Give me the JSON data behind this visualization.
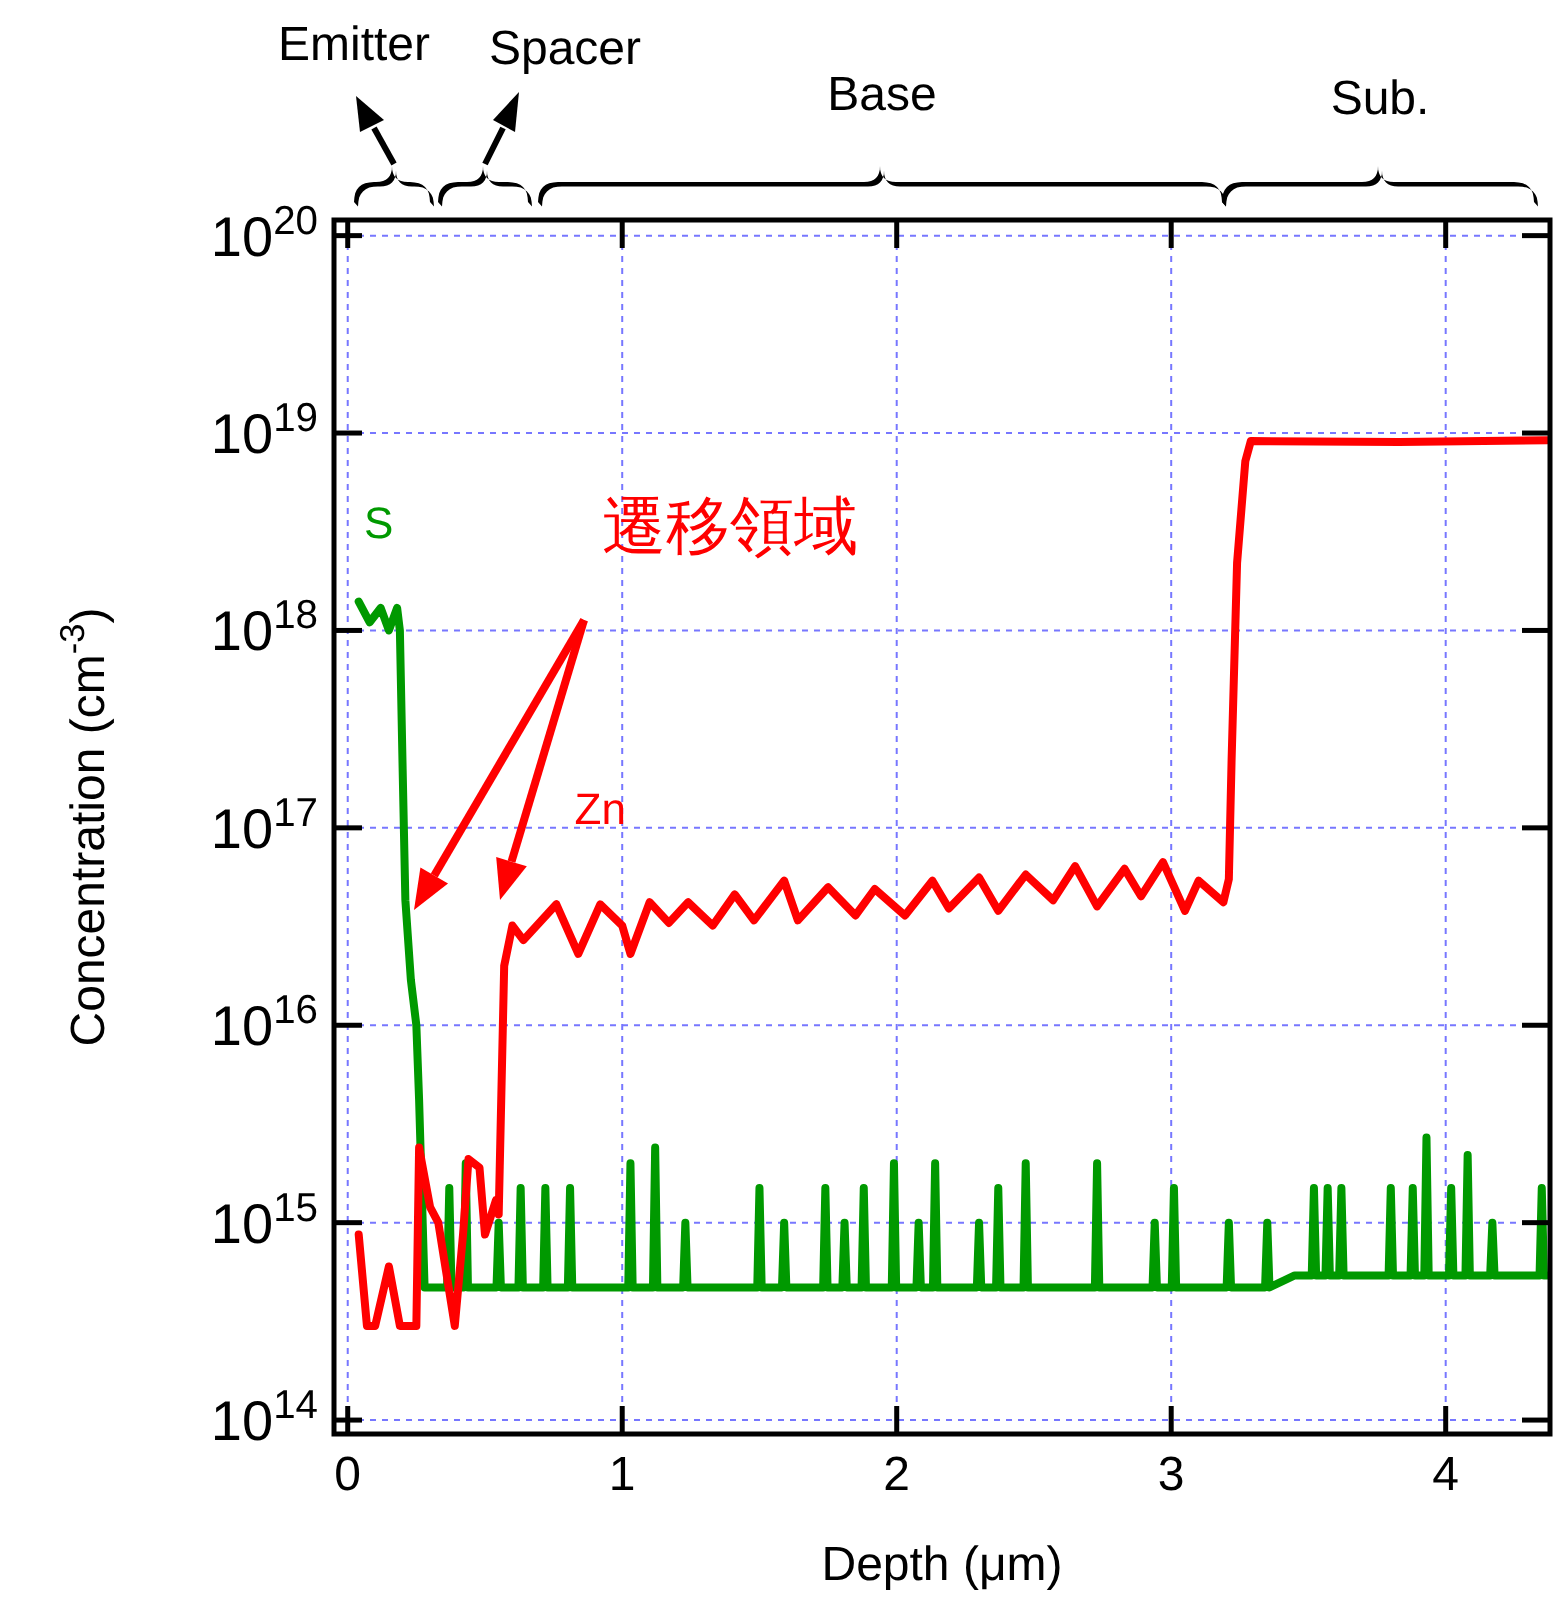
{
  "chart_data": {
    "type": "line",
    "xlabel": "Depth (μm)",
    "ylabel": "Concentration (cm$^{-3}$)",
    "log": "y",
    "grid": true,
    "line_style": "solid",
    "xlim": [
      -0.05,
      4.38
    ],
    "xticks": [
      0,
      1,
      2,
      3,
      4
    ],
    "ylim": [
      85000000000000.0,
      1.2e+20
    ],
    "yticks": [
      {
        "value": 100000000000000.0,
        "label": "10$^{14}$"
      },
      {
        "value": 1000000000000000.0,
        "label": "10$^{15}$"
      },
      {
        "value": 1e+16,
        "label": "10$^{16}$"
      },
      {
        "value": 1e+17,
        "label": "10$^{17}$"
      },
      {
        "value": 1e+18,
        "label": "10$^{18}$"
      },
      {
        "value": 1e+19,
        "label": "10$^{19}$"
      },
      {
        "value": 1e+20,
        "label": "10$^{20}$"
      }
    ],
    "annotations": [
      "Emitter",
      "Spacer",
      "Base",
      "Sub.",
      "遷移領域"
    ],
    "series": [
      {
        "name": "S",
        "color": "#009900",
        "x": [
          0.04,
          0.08,
          0.12,
          0.15,
          0.18,
          0.19,
          0.2,
          0.21,
          0.23,
          0.25,
          0.26,
          0.28,
          0.362,
          0.37,
          0.378,
          0.422,
          0.43,
          0.438,
          0.542,
          0.55,
          0.558,
          0.622,
          0.63,
          0.638,
          0.712,
          0.72,
          0.728,
          0.802,
          0.81,
          0.818,
          1.022,
          1.03,
          1.038,
          1.112,
          1.12,
          1.128,
          1.222,
          1.23,
          1.238,
          1.492,
          1.5,
          1.508,
          1.582,
          1.59,
          1.598,
          1.732,
          1.74,
          1.748,
          1.802,
          1.81,
          1.818,
          1.872,
          1.88,
          1.888,
          1.982,
          1.99,
          1.998,
          2.072,
          2.08,
          2.088,
          2.132,
          2.14,
          2.148,
          2.292,
          2.3,
          2.308,
          2.362,
          2.37,
          2.378,
          2.462,
          2.47,
          2.478,
          2.722,
          2.73,
          2.738,
          2.932,
          2.94,
          2.948,
          3.002,
          3.01,
          3.018,
          3.202,
          3.21,
          3.218,
          3.342,
          3.35,
          3.358,
          3.45,
          3.512,
          3.52,
          3.528,
          3.562,
          3.57,
          3.578,
          3.612,
          3.62,
          3.628,
          3.792,
          3.8,
          3.808,
          3.872,
          3.88,
          3.888,
          3.922,
          3.93,
          3.938,
          4.012,
          4.02,
          4.028,
          4.072,
          4.08,
          4.088,
          4.162,
          4.17,
          4.178,
          4.342,
          4.35,
          4.358,
          4.37
        ],
        "values": [
          1.4e+18,
          1.1e+18,
          1.3e+18,
          1e+18,
          1.3e+18,
          1e+18,
          2e+17,
          4.3e+16,
          1.7e+16,
          1e+16,
          4200000000000000.0,
          470000000000000.0,
          470000000000000.0,
          1500000000000000.0,
          470000000000000.0,
          470000000000000.0,
          2000000000000000.0,
          470000000000000.0,
          470000000000000.0,
          1000000000000000.0,
          470000000000000.0,
          470000000000000.0,
          1500000000000000.0,
          470000000000000.0,
          470000000000000.0,
          1500000000000000.0,
          470000000000000.0,
          470000000000000.0,
          1500000000000000.0,
          470000000000000.0,
          470000000000000.0,
          2000000000000000.0,
          470000000000000.0,
          470000000000000.0,
          2400000000000000.0,
          470000000000000.0,
          470000000000000.0,
          1000000000000000.0,
          470000000000000.0,
          470000000000000.0,
          1500000000000000.0,
          470000000000000.0,
          470000000000000.0,
          1000000000000000.0,
          470000000000000.0,
          470000000000000.0,
          1500000000000000.0,
          470000000000000.0,
          470000000000000.0,
          1000000000000000.0,
          470000000000000.0,
          470000000000000.0,
          1500000000000000.0,
          470000000000000.0,
          470000000000000.0,
          2000000000000000.0,
          470000000000000.0,
          470000000000000.0,
          1000000000000000.0,
          470000000000000.0,
          470000000000000.0,
          2000000000000000.0,
          470000000000000.0,
          470000000000000.0,
          1000000000000000.0,
          470000000000000.0,
          470000000000000.0,
          1500000000000000.0,
          470000000000000.0,
          470000000000000.0,
          2000000000000000.0,
          470000000000000.0,
          470000000000000.0,
          2000000000000000.0,
          470000000000000.0,
          470000000000000.0,
          1000000000000000.0,
          470000000000000.0,
          470000000000000.0,
          1500000000000000.0,
          470000000000000.0,
          470000000000000.0,
          1000000000000000.0,
          470000000000000.0,
          470000000000000.0,
          1000000000000000.0,
          470000000000000.0,
          540000000000000.0,
          540000000000000.0,
          1500000000000000.0,
          540000000000000.0,
          540000000000000.0,
          1500000000000000.0,
          540000000000000.0,
          540000000000000.0,
          1500000000000000.0,
          540000000000000.0,
          540000000000000.0,
          1500000000000000.0,
          540000000000000.0,
          540000000000000.0,
          1500000000000000.0,
          540000000000000.0,
          540000000000000.0,
          2700000000000000.0,
          540000000000000.0,
          540000000000000.0,
          1500000000000000.0,
          540000000000000.0,
          540000000000000.0,
          2200000000000000.0,
          540000000000000.0,
          540000000000000.0,
          1000000000000000.0,
          540000000000000.0,
          540000000000000.0,
          1500000000000000.0,
          540000000000000.0,
          540000000000000.0
        ]
      },
      {
        "name": "Zn",
        "color": "#ff0000",
        "x": [
          0.04,
          0.07,
          0.1,
          0.15,
          0.19,
          0.25,
          0.26,
          0.3,
          0.33,
          0.39,
          0.42,
          0.44,
          0.48,
          0.5,
          0.54,
          0.55,
          0.57,
          0.6,
          0.64,
          0.76,
          0.84,
          0.92,
          1.0,
          1.03,
          1.1,
          1.17,
          1.24,
          1.33,
          1.41,
          1.48,
          1.59,
          1.64,
          1.75,
          1.85,
          1.92,
          2.03,
          2.13,
          2.19,
          2.3,
          2.37,
          2.47,
          2.57,
          2.65,
          2.73,
          2.83,
          2.89,
          2.97,
          3.05,
          3.1,
          3.19,
          3.21,
          3.22,
          3.24,
          3.27,
          3.29,
          3.83,
          4.37
        ],
        "values": [
          870000000000000.0,
          300000000000000.0,
          300000000000000.0,
          600000000000000.0,
          300000000000000.0,
          300000000000000.0,
          2400000000000000.0,
          1200000000000000.0,
          1000000000000000.0,
          300000000000000.0,
          870000000000000.0,
          2100000000000000.0,
          1900000000000000.0,
          870000000000000.0,
          1300000000000000.0,
          1100000000000000.0,
          2e+16,
          3.2e+16,
          2.7e+16,
          4.1e+16,
          2.3e+16,
          4.1e+16,
          3.2e+16,
          2.3e+16,
          4.2e+16,
          3.3e+16,
          4.2e+16,
          3.2e+16,
          4.6e+16,
          3.4e+16,
          5.4e+16,
          3.4e+16,
          5e+16,
          3.6e+16,
          4.9e+16,
          3.6e+16,
          5.4e+16,
          3.9e+16,
          5.6e+16,
          3.8e+16,
          5.8e+16,
          4.3e+16,
          6.4e+16,
          4e+16,
          6.2e+16,
          4.5e+16,
          6.7e+16,
          3.8e+16,
          5.4e+16,
          4.2e+16,
          5.5e+16,
          2.2e+17,
          2.2e+18,
          7.2e+18,
          9.1e+18,
          9e+18,
          9.2e+18
        ]
      }
    ]
  }
}
